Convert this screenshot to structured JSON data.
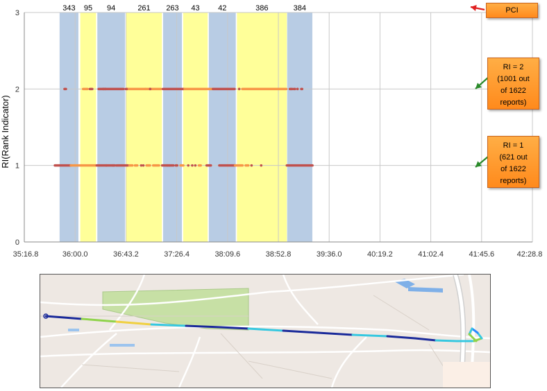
{
  "chart_data": {
    "type": "scatter",
    "ylabel": "RI(Rank Indicator)",
    "ylim": [
      0,
      3
    ],
    "yticks": [
      "0",
      "1",
      "2",
      "3"
    ],
    "xlim_seconds": [
      2116.8,
      2548.8
    ],
    "xticks": [
      "35:16.8",
      "36:00.0",
      "36:43.2",
      "37:26.4",
      "38:09.6",
      "38:52.8",
      "39:36.0",
      "40:19.2",
      "41:02.4",
      "41:45.6",
      "42:28.8"
    ],
    "grid": true,
    "pci_bands": [
      {
        "pci": "343",
        "start": "35:46.8",
        "end": "36:02.8",
        "color": "#b8cce4"
      },
      {
        "pci": "95",
        "start": "36:04.4",
        "end": "36:17.8",
        "color": "#ffff99"
      },
      {
        "pci": "94",
        "start": "36:18.9",
        "end": "36:42.4",
        "color": "#b8cce4"
      },
      {
        "pci": "261",
        "start": "36:43.4",
        "end": "37:13.8",
        "color": "#ffff99"
      },
      {
        "pci": "263",
        "start": "37:14.8",
        "end": "37:30.8",
        "color": "#b8cce4"
      },
      {
        "pci": "43",
        "start": "37:31.9",
        "end": "37:52.7",
        "color": "#ffff99"
      },
      {
        "pci": "42",
        "start": "37:53.7",
        "end": "38:16.6",
        "color": "#b8cce4"
      },
      {
        "pci": "386",
        "start": "38:17.6",
        "end": "38:60.0",
        "color": "#ffff99"
      },
      {
        "pci": "384",
        "start": "39:00.3",
        "end": "39:21.7",
        "color": "#b8cce4"
      }
    ],
    "series": [
      {
        "ri": 2,
        "segments": [
          {
            "start": "35:51.0",
            "end": "35:52.2",
            "color": "#c0504d"
          },
          {
            "start": "36:06.8",
            "end": "36:10.6",
            "color": "#f79646"
          },
          {
            "start": "36:12.6",
            "end": "36:14.6",
            "color": "#c0504d"
          },
          {
            "start": "36:20.0",
            "end": "36:41.1",
            "color": "#c0504d"
          },
          {
            "start": "36:43.1",
            "end": "36:44.6",
            "color": "#c0504d"
          },
          {
            "start": "36:45.6",
            "end": "36:59.8",
            "color": "#f79646"
          },
          {
            "start": "36:60.0",
            "end": "37:12.8",
            "color": "#f79646"
          },
          {
            "start": "37:14.6",
            "end": "37:32.4",
            "color": "#c0504d"
          },
          {
            "start": "37:33.1",
            "end": "37:51.8",
            "color": "#f79646"
          },
          {
            "start": "37:52.8",
            "end": "37:56.8",
            "color": "#f79646"
          },
          {
            "start": "37:57.2",
            "end": "38:15.6",
            "color": "#c0504d"
          },
          {
            "start": "38:22.2",
            "end": "38:59.6",
            "color": "#f79646"
          },
          {
            "start": "39:02.6",
            "end": "39:04.6",
            "color": "#c0504d"
          },
          {
            "start": "39:06.0",
            "end": "39:07.0",
            "color": "#c0504d"
          },
          {
            "start": "39:12.3",
            "end": "39:13.0",
            "color": "#c0504d"
          }
        ],
        "points": [
          "36:24.0",
          "36:25.6",
          "37:03.8",
          "38:19.5",
          "39:09.1"
        ]
      },
      {
        "ri": 1,
        "segments": [
          {
            "start": "35:42.8",
            "end": "35:56.4",
            "color": "#c0504d"
          },
          {
            "start": "35:56.4",
            "end": "36:17.6",
            "color": "#f79646"
          },
          {
            "start": "36:18.4",
            "end": "36:33.8",
            "color": "#c0504d"
          },
          {
            "start": "36:36.0",
            "end": "36:45.0",
            "color": "#c0504d"
          },
          {
            "start": "36:46.2",
            "end": "36:48.7",
            "color": "#f79646"
          },
          {
            "start": "36:50.9",
            "end": "36:52.8",
            "color": "#f79646"
          },
          {
            "start": "37:00.8",
            "end": "37:03.6",
            "color": "#f79646"
          },
          {
            "start": "37:06.4",
            "end": "37:11.3",
            "color": "#f79646"
          },
          {
            "start": "37:14.0",
            "end": "37:23.6",
            "color": "#c0504d"
          },
          {
            "start": "37:25.6",
            "end": "37:26.8",
            "color": "#c0504d"
          },
          {
            "start": "37:29.6",
            "end": "37:32.0",
            "color": "#f79646"
          },
          {
            "start": "37:45.3",
            "end": "37:46.8",
            "color": "#f79646"
          },
          {
            "start": "37:51.8",
            "end": "37:55.4",
            "color": "#c0504d"
          },
          {
            "start": "38:02.6",
            "end": "38:16.0",
            "color": "#c0504d"
          },
          {
            "start": "38:16.0",
            "end": "38:22.3",
            "color": "#f79646"
          },
          {
            "start": "38:25.0",
            "end": "38:27.2",
            "color": "#f79646"
          },
          {
            "start": "39:00.0",
            "end": "39:21.8",
            "color": "#c0504d"
          }
        ],
        "points": [
          "36:26.6",
          "36:32.3",
          "36:35.2",
          "36:56.2",
          "36:58.0",
          "37:18.4",
          "37:20.2",
          "37:36.2",
          "37:39.6",
          "37:42.2",
          "38:30.0",
          "38:38.2"
        ]
      }
    ],
    "annotations": [
      {
        "id": "pci",
        "text": [
          "PCI"
        ],
        "arrow_color": "#e02020"
      },
      {
        "id": "ri2",
        "text": [
          "RI = 2",
          "(1001 out",
          "of 1622",
          "reports)"
        ],
        "arrow_color": "#2a8a2a"
      },
      {
        "id": "ri1",
        "text": [
          "RI = 1",
          "(621 out",
          "of 1622",
          "reports)"
        ],
        "arrow_color": "#2a8a2a"
      }
    ]
  },
  "map": {
    "route_colors": [
      "#1a2a9a",
      "#36c8e0",
      "#8fd34a",
      "#f0d040",
      "#2a8aff"
    ]
  }
}
